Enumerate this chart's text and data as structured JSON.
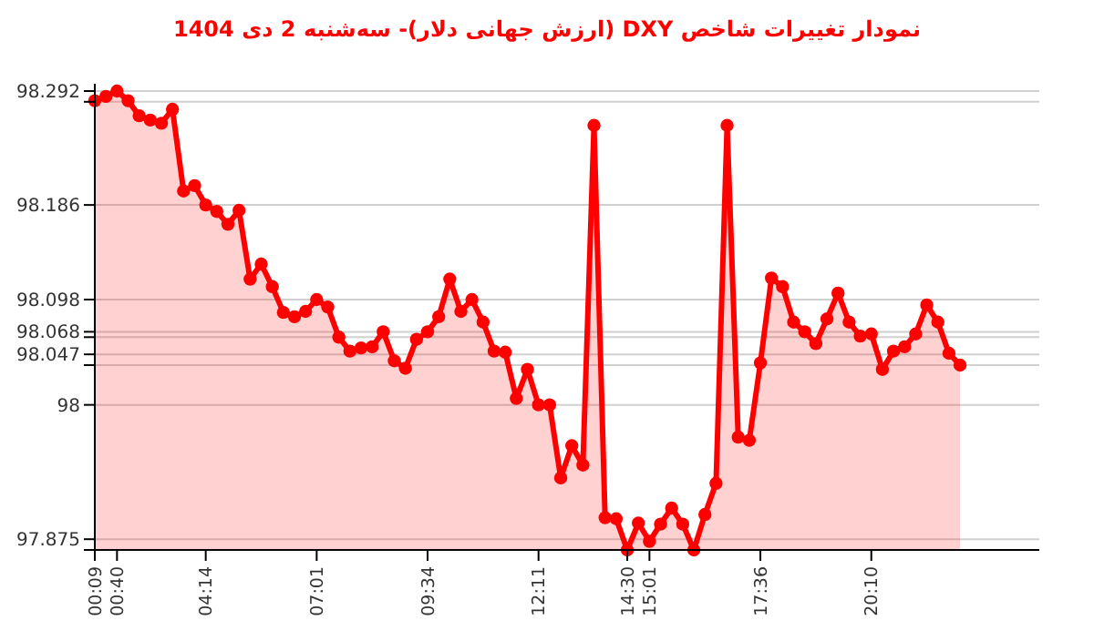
{
  "chart_data": {
    "type": "area",
    "title": "نمودار تغییرات شاخص DXY (ارزش جهانی دلار)- سه‌شنبه  2 دی 1404",
    "categories": [
      "00:09",
      null,
      "00:40",
      null,
      null,
      null,
      null,
      null,
      null,
      null,
      "04:14",
      null,
      null,
      null,
      null,
      null,
      null,
      null,
      null,
      null,
      "07:01",
      null,
      null,
      null,
      null,
      null,
      null,
      null,
      null,
      null,
      "09:34",
      null,
      null,
      null,
      null,
      null,
      null,
      null,
      null,
      null,
      "12:11",
      null,
      null,
      null,
      null,
      null,
      null,
      null,
      "14:30",
      null,
      "15:01",
      null,
      null,
      null,
      null,
      null,
      null,
      null,
      null,
      null,
      "17:36",
      null,
      null,
      null,
      null,
      null,
      null,
      null,
      null,
      null,
      "20:10",
      null,
      null,
      null,
      null,
      null,
      null,
      null,
      null
    ],
    "series": [
      {
        "color": "#ff0000",
        "values": [
          98.283,
          98.287,
          98.292,
          98.283,
          98.269,
          98.265,
          98.262,
          98.275,
          98.199,
          98.204,
          98.186,
          98.18,
          98.168,
          98.181,
          98.117,
          98.131,
          98.11,
          98.086,
          98.082,
          98.087,
          98.098,
          98.091,
          98.063,
          98.05,
          98.053,
          98.054,
          98.068,
          98.041,
          98.034,
          98.061,
          98.068,
          98.082,
          98.117,
          98.087,
          98.098,
          98.077,
          98.05,
          98.049,
          98.006,
          98.033,
          98.0,
          98.0,
          97.932,
          97.962,
          97.944,
          98.26,
          97.895,
          97.894,
          97.865,
          97.89,
          97.873,
          97.889,
          97.904,
          97.889,
          97.865,
          97.898,
          97.927,
          98.26,
          97.97,
          97.967,
          98.039,
          98.118,
          98.11,
          98.077,
          98.068,
          98.057,
          98.08,
          98.104,
          98.077,
          98.064,
          98.066,
          98.033,
          98.05,
          98.054,
          98.066,
          98.093,
          98.077,
          98.048,
          98.037
        ]
      }
    ],
    "ylim": [
      97.865,
      98.292
    ],
    "yticks": [
      98.292,
      {
        "value": 98.282,
        "label": null
      },
      98.186,
      98.098,
      98.068,
      {
        "value": 98.063,
        "label": null
      },
      98.047,
      {
        "value": 98.037,
        "label": null
      },
      98,
      97.875,
      {
        "value": 97.865,
        "label": null
      }
    ],
    "grid": "y",
    "marker": "circle",
    "line_style": "solid"
  }
}
